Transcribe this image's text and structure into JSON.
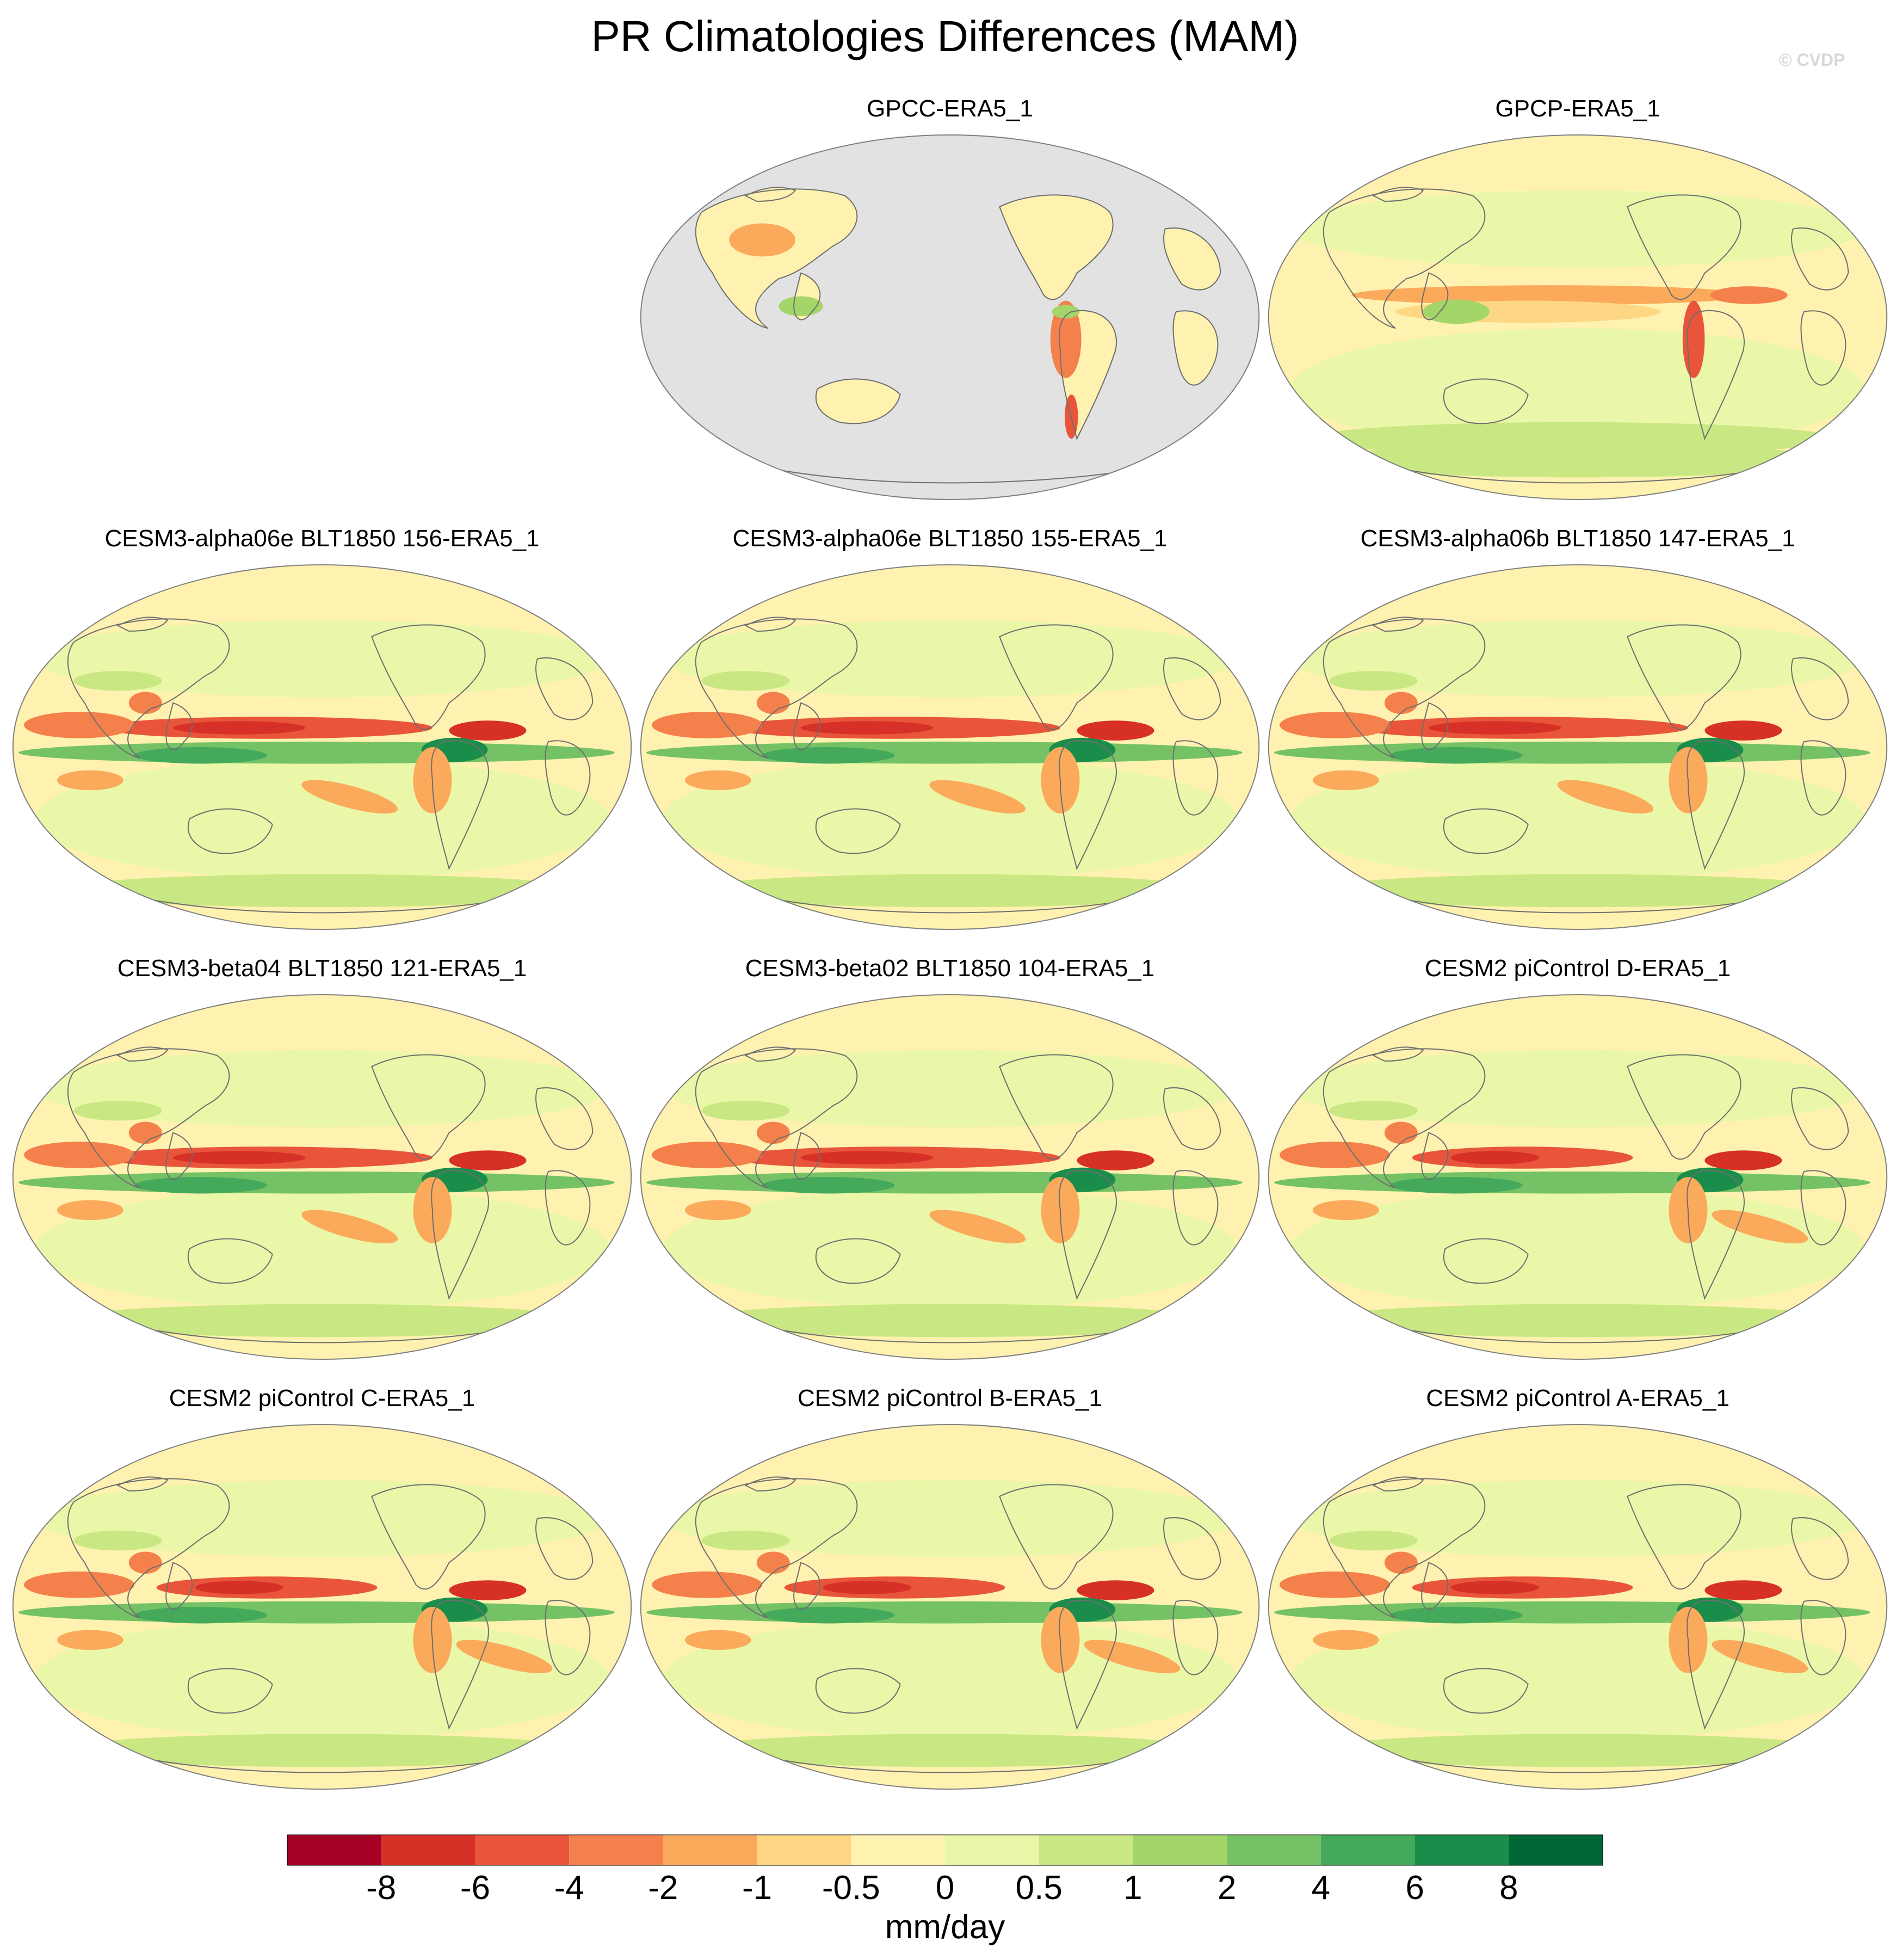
{
  "title": "PR Climatologies Differences (MAM)",
  "credit": "© CVDP",
  "chart_data": {
    "type": "heatmap",
    "projection": "Robinson world maps centered on the Pacific",
    "panels": [
      {
        "title": "GPCC-ERA5_1",
        "land_only": true
      },
      {
        "title": "GPCP-ERA5_1",
        "land_only": false
      },
      {
        "title": "CESM3-alpha06e BLT1850 156-ERA5_1",
        "land_only": false
      },
      {
        "title": "CESM3-alpha06e BLT1850 155-ERA5_1",
        "land_only": false
      },
      {
        "title": "CESM3-alpha06b BLT1850 147-ERA5_1",
        "land_only": false
      },
      {
        "title": "CESM3-beta04 BLT1850 121-ERA5_1",
        "land_only": false
      },
      {
        "title": "CESM3-beta02 BLT1850 104-ERA5_1",
        "land_only": false
      },
      {
        "title": "CESM2 piControl D-ERA5_1",
        "land_only": false
      },
      {
        "title": "CESM2 piControl C-ERA5_1",
        "land_only": false
      },
      {
        "title": "CESM2 piControl B-ERA5_1",
        "land_only": false
      },
      {
        "title": "CESM2 piControl A-ERA5_1",
        "land_only": false
      }
    ],
    "colorbar": {
      "label": "mm/day",
      "tick_labels": [
        "-8",
        "-6",
        "-4",
        "-2",
        "-1",
        "-0.5",
        "0",
        "0.5",
        "1",
        "2",
        "4",
        "6",
        "8"
      ],
      "colors": [
        "#a50026",
        "#d73027",
        "#e8553a",
        "#f4814b",
        "#fba95b",
        "#fdd784",
        "#fff2b0",
        "#eaf7a8",
        "#c9e883",
        "#a3d569",
        "#74c265",
        "#44a95a",
        "#1b8d4b",
        "#006837"
      ]
    },
    "missing_color": "#e2e2e2",
    "coastline_color": "#6f6f6f"
  }
}
